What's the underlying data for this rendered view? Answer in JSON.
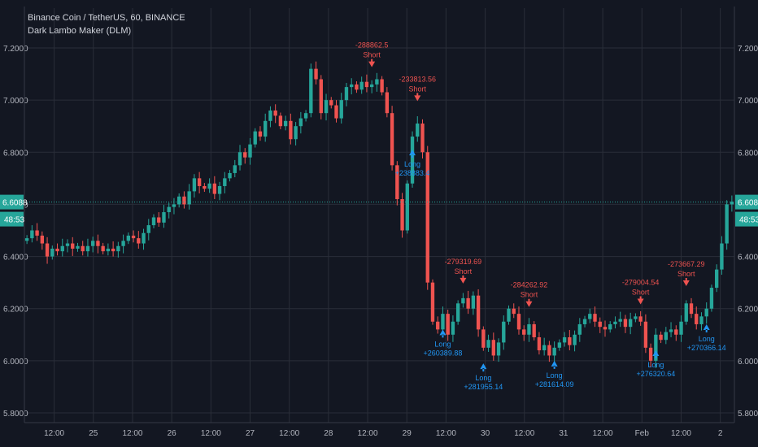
{
  "header": {
    "symbol_line": "Binance Coin / TetherUS, 60, BINANCE",
    "indicator_line": "Dark Lambo Maker (DLM)"
  },
  "colors": {
    "background": "#131722",
    "grid": "#2a2e39",
    "up": "#26a69a",
    "down": "#ef5350",
    "long_signal": "#2196f3",
    "short_signal": "#ef5350",
    "price_line": "#26a69a",
    "axis_text": "#b2b5be"
  },
  "chart_data": {
    "type": "candlestick",
    "title": "Binance Coin / TetherUS, 60, BINANCE",
    "indicator": "Dark Lambo Maker (DLM)",
    "grid": true,
    "ylim": [
      5.78,
      7.28
    ],
    "y_ticks": [
      "7.2000",
      "7.0000",
      "6.8000",
      "6.6000",
      "6.4000",
      "6.2000",
      "6.0000",
      "5.8000"
    ],
    "x_ticks": [
      "12:00",
      "25",
      "12:00",
      "26",
      "12:00",
      "27",
      "12:00",
      "28",
      "12:00",
      "29",
      "12:00",
      "30",
      "12:00",
      "31",
      "12:00",
      "Feb",
      "12:00",
      "2"
    ],
    "x_tick_index": [
      0.5,
      1,
      1.5,
      2,
      2.5,
      3,
      3.5,
      4,
      4.5,
      5,
      5.5,
      6,
      6.5,
      7,
      7.5,
      8,
      8.5,
      9
    ],
    "x_days_start": 0.12,
    "x_days_end": 9.18,
    "last_price": "6.6088",
    "countdown": "48:53",
    "closes": [
      6.47,
      6.5,
      6.48,
      6.45,
      6.4,
      6.43,
      6.42,
      6.44,
      6.45,
      6.43,
      6.44,
      6.42,
      6.44,
      6.46,
      6.44,
      6.42,
      6.43,
      6.42,
      6.44,
      6.46,
      6.48,
      6.47,
      6.45,
      6.49,
      6.52,
      6.55,
      6.53,
      6.57,
      6.59,
      6.6,
      6.63,
      6.6,
      6.65,
      6.7,
      6.67,
      6.66,
      6.68,
      6.64,
      6.67,
      6.7,
      6.72,
      6.75,
      6.8,
      6.78,
      6.83,
      6.88,
      6.86,
      6.92,
      6.96,
      6.94,
      6.9,
      6.92,
      6.85,
      6.9,
      6.93,
      6.95,
      7.12,
      7.08,
      6.95,
      7.0,
      6.98,
      6.93,
      7.0,
      7.05,
      7.06,
      7.04,
      7.07,
      7.05,
      7.06,
      7.08,
      7.03,
      6.95,
      6.75,
      6.62,
      6.5,
      6.68,
      6.86,
      6.91,
      6.8,
      6.3,
      6.15,
      6.12,
      6.18,
      6.1,
      6.15,
      6.22,
      6.24,
      6.2,
      6.25,
      6.12,
      6.05,
      6.08,
      6.02,
      6.07,
      6.15,
      6.2,
      6.18,
      6.12,
      6.1,
      6.14,
      6.09,
      6.04,
      6.06,
      6.02,
      6.05,
      6.07,
      6.09,
      6.06,
      6.1,
      6.14,
      6.16,
      6.18,
      6.15,
      6.13,
      6.12,
      6.14,
      6.15,
      6.16,
      6.13,
      6.16,
      6.17,
      6.15,
      6.05,
      6.0,
      6.1,
      6.08,
      6.11,
      6.12,
      6.1,
      6.15,
      6.22,
      6.18,
      6.14,
      6.17,
      6.2,
      6.28,
      6.35,
      6.45,
      6.6,
      6.61
    ],
    "signals": [
      {
        "type": "Short",
        "value": "-288862.5",
        "index": 68,
        "offset": 0.06,
        "label_pos": "above"
      },
      {
        "type": "Long",
        "value": "+238883.4",
        "index": 76,
        "offset": -0.05,
        "label_pos": "below"
      },
      {
        "type": "Short",
        "value": "-233813.56",
        "index": 77,
        "offset": 0.08,
        "label_pos": "above"
      },
      {
        "type": "Short",
        "value": "-279319.69",
        "index": 86,
        "offset": 0.05,
        "label_pos": "above"
      },
      {
        "type": "Long",
        "value": "+260389.88",
        "index": 82,
        "offset": -0.06,
        "label_pos": "below"
      },
      {
        "type": "Long",
        "value": "+281955.14",
        "index": 90,
        "offset": -0.06,
        "label_pos": "below"
      },
      {
        "type": "Short",
        "value": "-284262.92",
        "index": 99,
        "offset": 0.06,
        "label_pos": "above"
      },
      {
        "type": "Long",
        "value": "+281614.09",
        "index": 104,
        "offset": -0.05,
        "label_pos": "below"
      },
      {
        "type": "Short",
        "value": "-279004.54",
        "index": 121,
        "offset": 0.06,
        "label_pos": "above"
      },
      {
        "type": "Long",
        "value": "+276320.64",
        "index": 124,
        "offset": -0.06,
        "label_pos": "below"
      },
      {
        "type": "Short",
        "value": "-273667.29",
        "index": 130,
        "offset": 0.06,
        "label_pos": "above"
      },
      {
        "type": "Long",
        "value": "+270366.14",
        "index": 134,
        "offset": -0.06,
        "label_pos": "below"
      }
    ]
  }
}
